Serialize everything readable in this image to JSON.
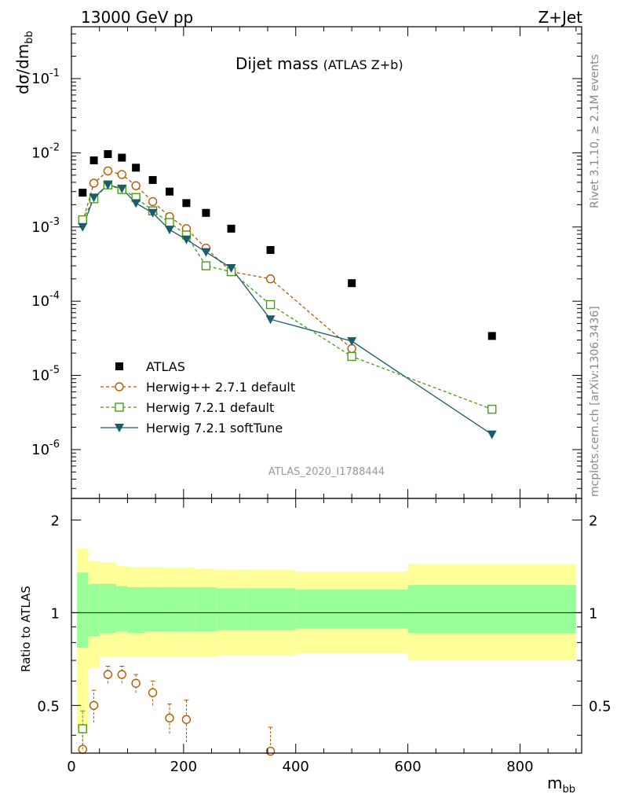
{
  "header": {
    "left_label": "13000 GeV pp",
    "right_label": "Z+Jet"
  },
  "side": {
    "rivet": "Rivet 3.1.10, ≥ 2.1M events",
    "mcplots": "mcplots.cern.ch [arXiv:1306.3436]"
  },
  "chart_data": [
    {
      "type": "scatter",
      "title": "Dijet mass",
      "subtitle": "(ATLAS Z+b)",
      "ylabel": "dσ/dm_bb",
      "xlabel": "m_bb",
      "analysis_label": "ATLAS_2020_I1788444",
      "xlim": [
        0,
        910
      ],
      "ylim": [
        2.2e-07,
        0.5
      ],
      "yscale": "log",
      "y_ticks": [
        {
          "value": 1e-06,
          "label": "10^-6"
        },
        {
          "value": 1e-05,
          "label": "10^-5"
        },
        {
          "value": 0.0001,
          "label": "10^-4"
        },
        {
          "value": 0.001,
          "label": "10^-3"
        },
        {
          "value": 0.01,
          "label": "10^-2"
        },
        {
          "value": 0.1,
          "label": "10^-1"
        }
      ],
      "legend_position": "lower-left",
      "series": [
        {
          "name": "ATLAS",
          "color": "#000000",
          "marker": "filled-square",
          "line": "none",
          "x": [
            20,
            40,
            65,
            90,
            115,
            145,
            175,
            205,
            240,
            285,
            355,
            500,
            750
          ],
          "y": [
            0.0029,
            0.0079,
            0.0096,
            0.0086,
            0.0063,
            0.0043,
            0.003,
            0.0021,
            0.00155,
            0.00095,
            0.00049,
            0.000175,
            3.4e-05
          ]
        },
        {
          "name": "Herwig++ 2.7.1 default",
          "color": "#b35900",
          "marker": "open-circle",
          "line": "dashed",
          "x": [
            20,
            40,
            65,
            90,
            115,
            145,
            175,
            205,
            240,
            285,
            355,
            500
          ],
          "y": [
            0.00118,
            0.0039,
            0.0057,
            0.0051,
            0.0036,
            0.0022,
            0.00138,
            0.00095,
            0.00052,
            0.00025,
            0.0002,
            2.3e-05
          ]
        },
        {
          "name": "Herwig 7.2.1 default",
          "color": "#4d9a14",
          "marker": "open-square",
          "line": "dashed",
          "x": [
            20,
            40,
            65,
            90,
            115,
            145,
            175,
            205,
            240,
            285,
            355,
            500,
            750
          ],
          "y": [
            0.00125,
            0.0024,
            0.0037,
            0.0032,
            0.0025,
            0.00165,
            0.00115,
            0.00078,
            0.0003,
            0.00025,
            9e-05,
            1.8e-05,
            3.5e-06
          ]
        },
        {
          "name": "Herwig 7.2.1 softTune",
          "color": "#1a5c6b",
          "marker": "filled-triangle-down",
          "line": "solid",
          "x": [
            20,
            40,
            65,
            90,
            115,
            145,
            175,
            205,
            240,
            285,
            355,
            500,
            750
          ],
          "y": [
            0.001,
            0.0025,
            0.0037,
            0.0033,
            0.0021,
            0.00155,
            0.00092,
            0.00068,
            0.00046,
            0.00028,
            5.7e-05,
            2.9e-05,
            1.6e-06
          ]
        }
      ]
    },
    {
      "type": "area",
      "ylabel": "Ratio to ATLAS",
      "xlabel": "m_bb",
      "xlim": [
        0,
        910
      ],
      "ylim": [
        0.35,
        2.35
      ],
      "yscale": "log",
      "x_ticks": [
        0,
        200,
        400,
        600,
        800
      ],
      "y_ticks": [
        0.5,
        1,
        2
      ],
      "reference": 1,
      "bins": [
        {
          "lo": 10,
          "hi": 30,
          "inner": [
            0.77,
            1.35
          ],
          "outer": [
            0.42,
            1.62
          ]
        },
        {
          "lo": 30,
          "hi": 50,
          "inner": [
            0.84,
            1.24
          ],
          "outer": [
            0.66,
            1.47
          ]
        },
        {
          "lo": 50,
          "hi": 80,
          "inner": [
            0.86,
            1.24
          ],
          "outer": [
            0.72,
            1.46
          ]
        },
        {
          "lo": 80,
          "hi": 100,
          "inner": [
            0.87,
            1.22
          ],
          "outer": [
            0.72,
            1.42
          ]
        },
        {
          "lo": 100,
          "hi": 130,
          "inner": [
            0.86,
            1.21
          ],
          "outer": [
            0.72,
            1.41
          ]
        },
        {
          "lo": 130,
          "hi": 160,
          "inner": [
            0.87,
            1.21
          ],
          "outer": [
            0.72,
            1.41
          ]
        },
        {
          "lo": 160,
          "hi": 190,
          "inner": [
            0.87,
            1.21
          ],
          "outer": [
            0.72,
            1.4
          ]
        },
        {
          "lo": 190,
          "hi": 220,
          "inner": [
            0.87,
            1.21
          ],
          "outer": [
            0.72,
            1.4
          ]
        },
        {
          "lo": 220,
          "hi": 260,
          "inner": [
            0.87,
            1.21
          ],
          "outer": [
            0.72,
            1.39
          ]
        },
        {
          "lo": 260,
          "hi": 310,
          "inner": [
            0.88,
            1.2
          ],
          "outer": [
            0.73,
            1.38
          ]
        },
        {
          "lo": 310,
          "hi": 400,
          "inner": [
            0.88,
            1.2
          ],
          "outer": [
            0.73,
            1.38
          ]
        },
        {
          "lo": 400,
          "hi": 600,
          "inner": [
            0.89,
            1.19
          ],
          "outer": [
            0.74,
            1.36
          ]
        },
        {
          "lo": 600,
          "hi": 900,
          "inner": [
            0.86,
            1.23
          ],
          "outer": [
            0.7,
            1.44
          ]
        }
      ],
      "band_colors": {
        "inner": "#99ff99",
        "outer": "#ffff99"
      },
      "series": [
        {
          "name": "Herwig++ 2.7.1 default",
          "color": "#b35900",
          "marker": "open-circle",
          "x": [
            20,
            40,
            65,
            90,
            115,
            145,
            175,
            205,
            355
          ],
          "y": [
            0.36,
            0.5,
            0.63,
            0.63,
            0.59,
            0.55,
            0.455,
            0.45,
            0.355
          ],
          "err": [
            0.05,
            0.06,
            0.04,
            0.04,
            0.04,
            0.05,
            0.05,
            0.07,
            0.07
          ]
        },
        {
          "name": "Herwig 7.2.1 default",
          "color": "#4d9a14",
          "marker": "open-square",
          "x": [
            20
          ],
          "y": [
            0.42
          ],
          "err": [
            0.06
          ]
        }
      ]
    }
  ]
}
